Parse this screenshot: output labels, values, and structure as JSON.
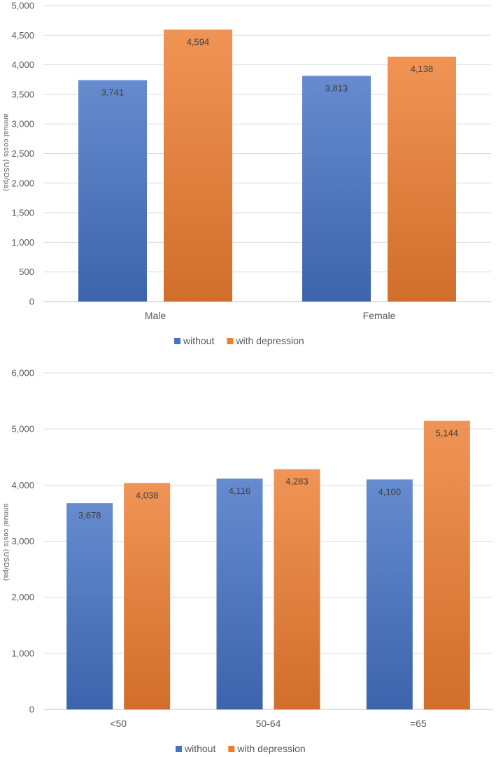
{
  "chart_data": [
    {
      "type": "bar",
      "title": "",
      "xlabel": "",
      "ylabel": "annual costs (USD/pa)",
      "ylim": [
        0,
        5000
      ],
      "ytick_step": 500,
      "categories": [
        "Male",
        "Female"
      ],
      "series": [
        {
          "name": "without",
          "color": "#4472C4",
          "values": [
            3741,
            3813
          ],
          "labels": [
            "3,741",
            "3,813"
          ]
        },
        {
          "name": "with depression",
          "color": "#ED7D31",
          "values": [
            4594,
            4138
          ],
          "labels": [
            "4,594",
            "4,138"
          ]
        }
      ],
      "yticks": [
        "0",
        "500",
        "1,000",
        "1,500",
        "2,000",
        "2,500",
        "3,000",
        "3,500",
        "4,000",
        "4,500",
        "5,000"
      ],
      "grid": true,
      "legend": "bottom"
    },
    {
      "type": "bar",
      "title": "",
      "xlabel": "",
      "ylabel": "annual costs (USD/pa)",
      "ylim": [
        0,
        6000
      ],
      "ytick_step": 1000,
      "categories": [
        "<50",
        "50-64",
        "=65"
      ],
      "series": [
        {
          "name": "without",
          "color": "#4472C4",
          "values": [
            3678,
            4116,
            4100
          ],
          "labels": [
            "3,678",
            "4,116",
            "4,100"
          ]
        },
        {
          "name": "with depression",
          "color": "#ED7D31",
          "values": [
            4038,
            4283,
            5144
          ],
          "labels": [
            "4,038",
            "4,283",
            "5,144"
          ]
        }
      ],
      "yticks": [
        "0",
        "1,000",
        "2,000",
        "3,000",
        "4,000",
        "5,000",
        "6,000"
      ],
      "grid": true,
      "legend": "bottom"
    }
  ]
}
